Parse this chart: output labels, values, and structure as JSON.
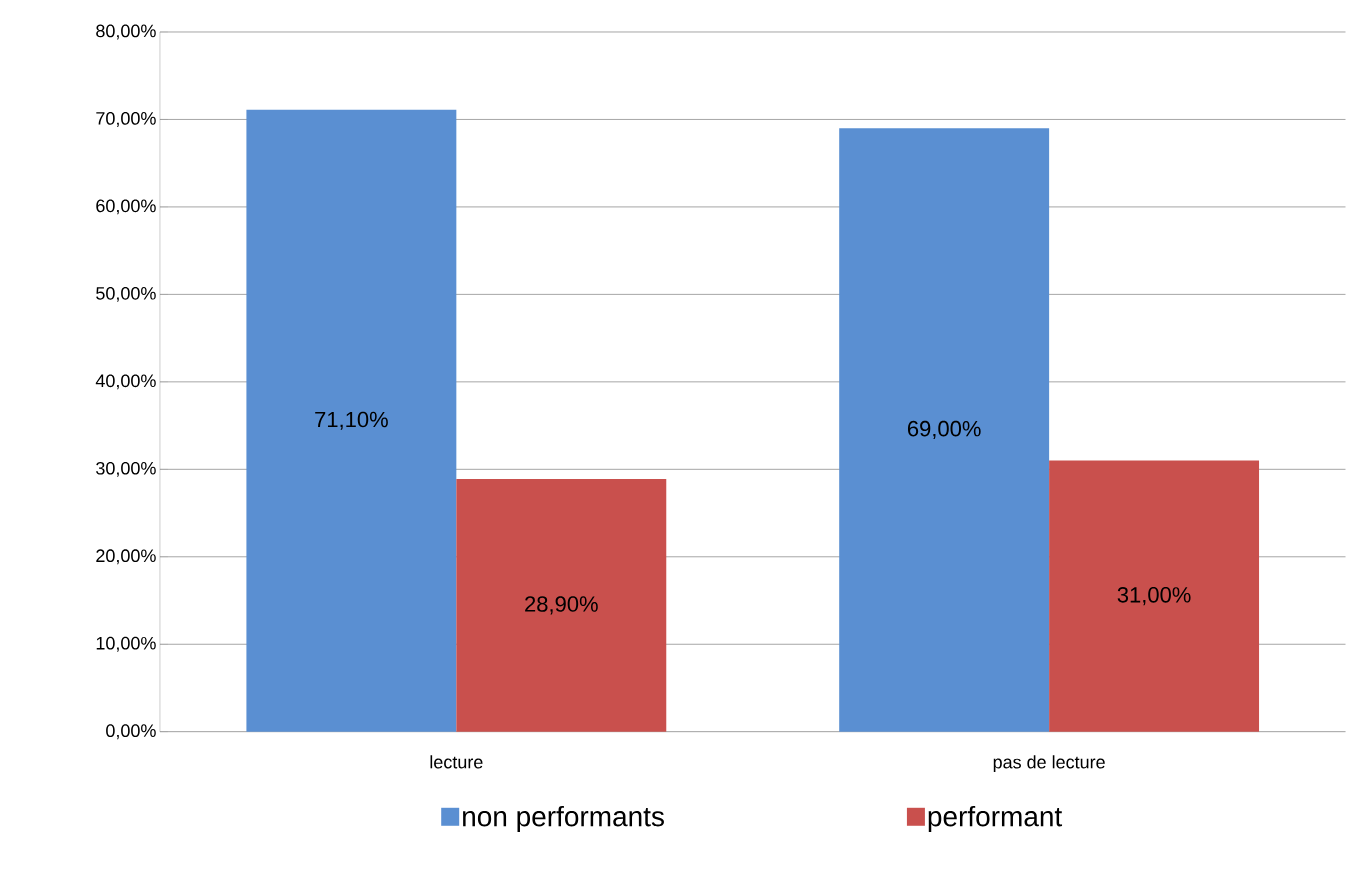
{
  "chart_data": {
    "type": "bar",
    "categories": [
      "lecture",
      "pas de lecture"
    ],
    "series": [
      {
        "name": "non performants",
        "color": "#5a8fd2",
        "values": [
          71.1,
          69.0
        ],
        "value_labels": [
          "71,10%",
          "69,00%"
        ]
      },
      {
        "name": "performant",
        "color": "#c9504d",
        "values": [
          28.9,
          31.0
        ],
        "value_labels": [
          "28,90%",
          "31,00%"
        ]
      }
    ],
    "ylim": [
      0,
      80
    ],
    "yticks": [
      {
        "value": 0,
        "label": "0,00%"
      },
      {
        "value": 10,
        "label": "10,00%"
      },
      {
        "value": 20,
        "label": "20,00%"
      },
      {
        "value": 30,
        "label": "30,00%"
      },
      {
        "value": 40,
        "label": "40,00%"
      },
      {
        "value": 50,
        "label": "50,00%"
      },
      {
        "value": 60,
        "label": "60,00%"
      },
      {
        "value": 70,
        "label": "70,00%"
      },
      {
        "value": 80,
        "label": "80,00%"
      }
    ],
    "grid": "y",
    "legend": "bottom"
  }
}
